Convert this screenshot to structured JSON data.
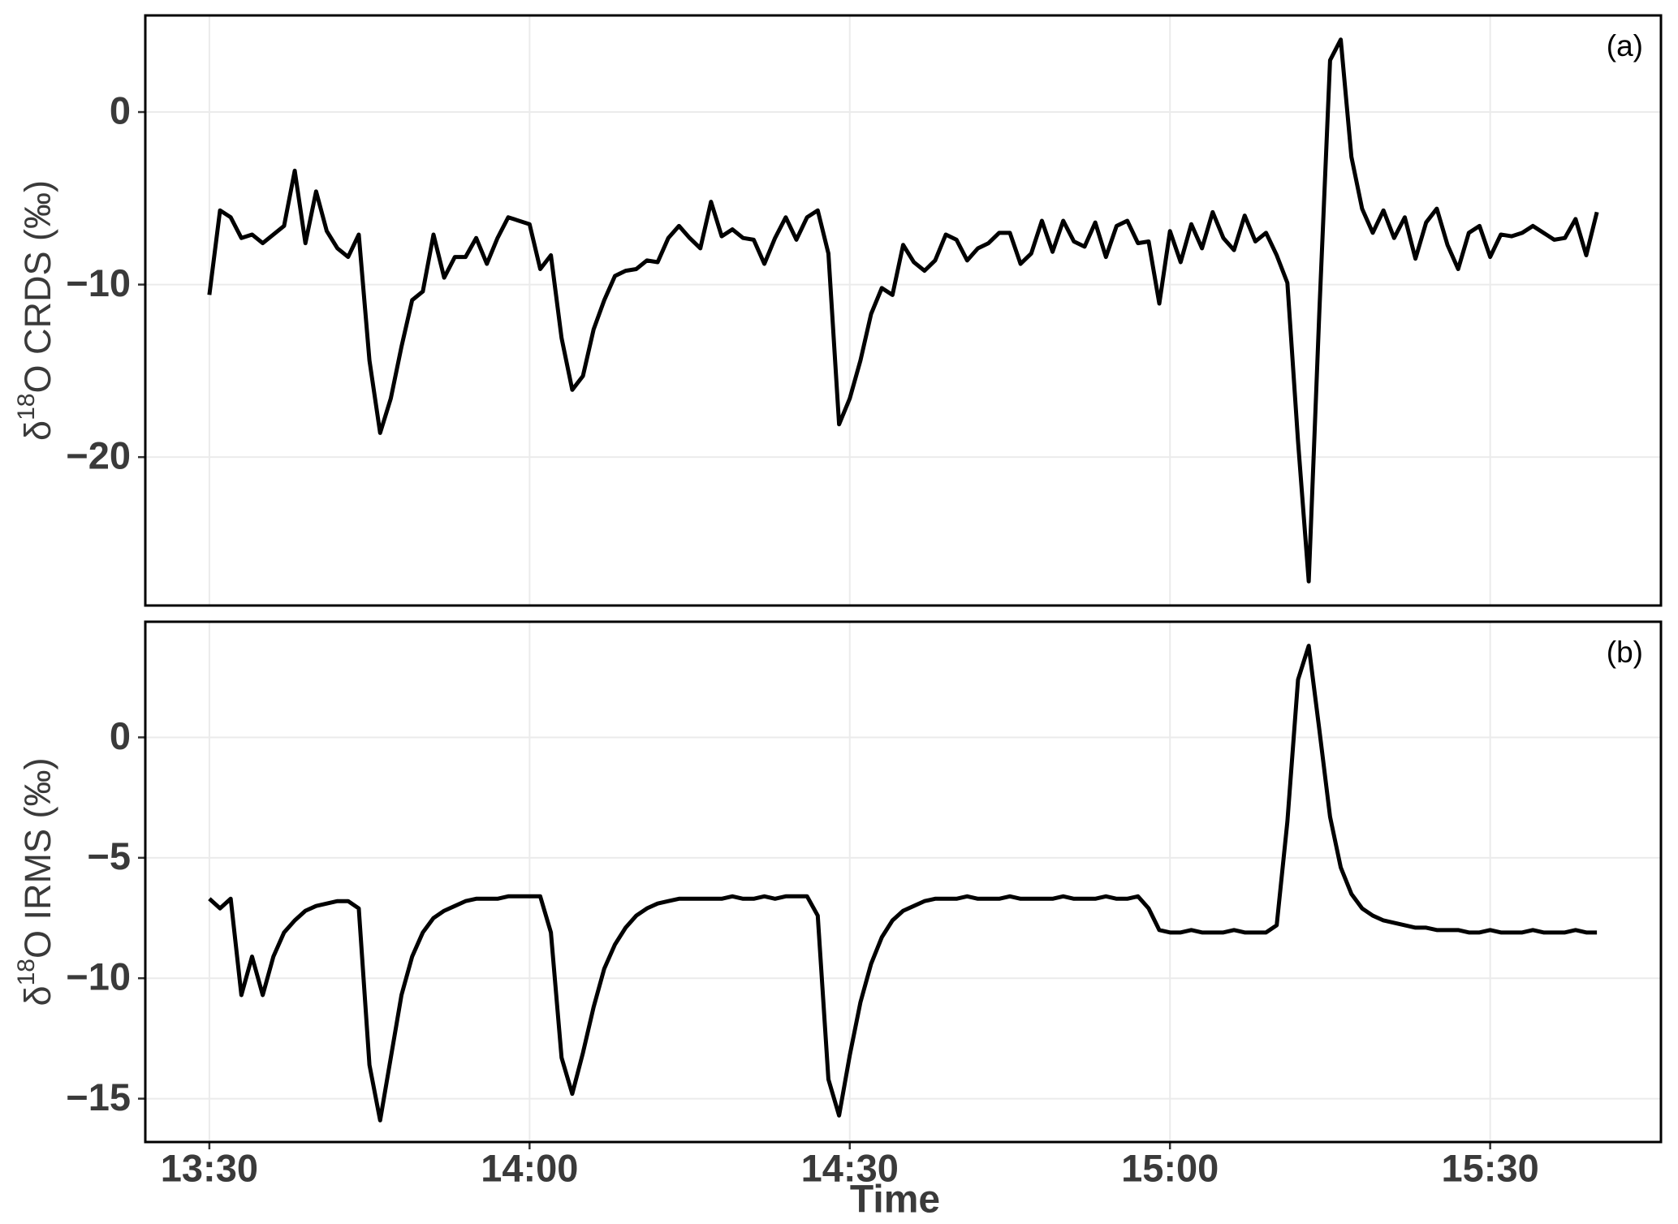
{
  "chart_data": [
    {
      "type": "line",
      "tag": "(a)",
      "ylabel_parts": [
        "δ",
        "18",
        "O CRDS (‰)"
      ],
      "color": "#000000",
      "grid": true,
      "xtick_labels": false,
      "x": [
        "13:30",
        "13:31",
        "13:32",
        "13:33",
        "13:34",
        "13:35",
        "13:36",
        "13:37",
        "13:38",
        "13:39",
        "13:40",
        "13:41",
        "13:42",
        "13:43",
        "13:44",
        "13:45",
        "13:46",
        "13:47",
        "13:48",
        "13:49",
        "13:50",
        "13:51",
        "13:52",
        "13:53",
        "13:54",
        "13:55",
        "13:56",
        "13:57",
        "13:58",
        "13:59",
        "14:00",
        "14:01",
        "14:02",
        "14:03",
        "14:04",
        "14:05",
        "14:06",
        "14:07",
        "14:08",
        "14:09",
        "14:10",
        "14:11",
        "14:12",
        "14:13",
        "14:14",
        "14:15",
        "14:16",
        "14:17",
        "14:18",
        "14:19",
        "14:20",
        "14:21",
        "14:22",
        "14:23",
        "14:24",
        "14:25",
        "14:26",
        "14:27",
        "14:28",
        "14:29",
        "14:30",
        "14:31",
        "14:32",
        "14:33",
        "14:34",
        "14:35",
        "14:36",
        "14:37",
        "14:38",
        "14:39",
        "14:40",
        "14:41",
        "14:42",
        "14:43",
        "14:44",
        "14:45",
        "14:46",
        "14:47",
        "14:48",
        "14:49",
        "14:50",
        "14:51",
        "14:52",
        "14:53",
        "14:54",
        "14:55",
        "14:56",
        "14:57",
        "14:58",
        "14:59",
        "15:00",
        "15:01",
        "15:02",
        "15:03",
        "15:04",
        "15:05",
        "15:06",
        "15:07",
        "15:08",
        "15:09",
        "15:10",
        "15:11",
        "15:12",
        "15:13",
        "15:14",
        "15:15",
        "15:16",
        "15:17",
        "15:18",
        "15:19",
        "15:20",
        "15:21",
        "15:22",
        "15:23",
        "15:24",
        "15:25",
        "15:26",
        "15:27",
        "15:28",
        "15:29",
        "15:30",
        "15:31",
        "15:32",
        "15:33",
        "15:34",
        "15:35",
        "15:36",
        "15:37",
        "15:38",
        "15:39",
        "15:40"
      ],
      "values": [
        -10.6,
        -5.7,
        -6.1,
        -7.3,
        -7.1,
        -7.6,
        -7.1,
        -6.6,
        -3.4,
        -7.6,
        -4.6,
        -6.9,
        -7.9,
        -8.4,
        -7.1,
        -14.4,
        -18.6,
        -16.6,
        -13.6,
        -10.9,
        -10.4,
        -7.1,
        -9.6,
        -8.4,
        -8.4,
        -7.3,
        -8.8,
        -7.3,
        -6.1,
        -6.3,
        -6.5,
        -9.1,
        -8.3,
        -13.1,
        -16.1,
        -15.3,
        -12.6,
        -10.9,
        -9.5,
        -9.2,
        -9.1,
        -8.6,
        -8.7,
        -7.3,
        -6.6,
        -7.3,
        -7.9,
        -5.2,
        -7.2,
        -6.8,
        -7.3,
        -7.4,
        -8.8,
        -7.3,
        -6.1,
        -7.4,
        -6.1,
        -5.7,
        -8.2,
        -18.1,
        -16.6,
        -14.4,
        -11.7,
        -10.2,
        -10.6,
        -7.7,
        -8.7,
        -9.2,
        -8.6,
        -7.1,
        -7.4,
        -8.6,
        -7.9,
        -7.6,
        -7.0,
        -7.0,
        -8.8,
        -8.2,
        -6.3,
        -8.1,
        -6.3,
        -7.5,
        -7.8,
        -6.4,
        -8.4,
        -6.6,
        -6.3,
        -7.6,
        -7.5,
        -11.1,
        -6.9,
        -8.7,
        -6.5,
        -7.9,
        -5.8,
        -7.3,
        -8.0,
        -6.0,
        -7.5,
        -7.0,
        -8.3,
        -9.9,
        -19.1,
        -27.2,
        -11.5,
        3.0,
        4.2,
        -2.6,
        -5.6,
        -7.0,
        -5.7,
        -7.3,
        -6.1,
        -8.5,
        -6.4,
        -5.6,
        -7.7,
        -9.1,
        -7.0,
        -6.6,
        -8.4,
        -7.1,
        -7.2,
        -7.0,
        -6.6,
        -7.0,
        -7.4,
        -7.3,
        -6.2,
        -8.3,
        -5.8
      ],
      "xlim": [
        "13:24",
        "15:46"
      ],
      "xticks": [
        "13:30",
        "14:00",
        "14:30",
        "15:00",
        "15:30"
      ],
      "ylim": [
        -28.6,
        5.6
      ],
      "yticks": [
        0,
        {
          "value": -10,
          "label": "−10"
        },
        {
          "value": -20,
          "label": "−20"
        }
      ]
    },
    {
      "type": "line",
      "tag": "(b)",
      "ylabel_parts": [
        "δ",
        "18",
        "O IRMS (‰)"
      ],
      "xlabel": "Time",
      "color": "#000000",
      "grid": true,
      "xtick_labels": true,
      "x": [
        "13:30",
        "13:31",
        "13:32",
        "13:33",
        "13:34",
        "13:35",
        "13:36",
        "13:37",
        "13:38",
        "13:39",
        "13:40",
        "13:41",
        "13:42",
        "13:43",
        "13:44",
        "13:45",
        "13:46",
        "13:47",
        "13:48",
        "13:49",
        "13:50",
        "13:51",
        "13:52",
        "13:53",
        "13:54",
        "13:55",
        "13:56",
        "13:57",
        "13:58",
        "13:59",
        "14:00",
        "14:01",
        "14:02",
        "14:03",
        "14:04",
        "14:05",
        "14:06",
        "14:07",
        "14:08",
        "14:09",
        "14:10",
        "14:11",
        "14:12",
        "14:13",
        "14:14",
        "14:15",
        "14:16",
        "14:17",
        "14:18",
        "14:19",
        "14:20",
        "14:21",
        "14:22",
        "14:23",
        "14:24",
        "14:25",
        "14:26",
        "14:27",
        "14:28",
        "14:29",
        "14:30",
        "14:31",
        "14:32",
        "14:33",
        "14:34",
        "14:35",
        "14:36",
        "14:37",
        "14:38",
        "14:39",
        "14:40",
        "14:41",
        "14:42",
        "14:43",
        "14:44",
        "14:45",
        "14:46",
        "14:47",
        "14:48",
        "14:49",
        "14:50",
        "14:51",
        "14:52",
        "14:53",
        "14:54",
        "14:55",
        "14:56",
        "14:57",
        "14:58",
        "14:59",
        "15:00",
        "15:01",
        "15:02",
        "15:03",
        "15:04",
        "15:05",
        "15:06",
        "15:07",
        "15:08",
        "15:09",
        "15:10",
        "15:11",
        "15:12",
        "15:13",
        "15:14",
        "15:15",
        "15:16",
        "15:17",
        "15:18",
        "15:19",
        "15:20",
        "15:21",
        "15:22",
        "15:23",
        "15:24",
        "15:25",
        "15:26",
        "15:27",
        "15:28",
        "15:29",
        "15:30",
        "15:31",
        "15:32",
        "15:33",
        "15:34",
        "15:35",
        "15:36",
        "15:37",
        "15:38",
        "15:39",
        "15:40"
      ],
      "values": [
        -6.7,
        -7.1,
        -6.7,
        -10.7,
        -9.1,
        -10.7,
        -9.1,
        -8.1,
        -7.6,
        -7.2,
        -7.0,
        -6.9,
        -6.8,
        -6.8,
        -7.1,
        -13.6,
        -15.9,
        -13.3,
        -10.7,
        -9.1,
        -8.1,
        -7.5,
        -7.2,
        -7.0,
        -6.8,
        -6.7,
        -6.7,
        -6.7,
        -6.6,
        -6.6,
        -6.6,
        -6.6,
        -8.1,
        -13.3,
        -14.8,
        -13.1,
        -11.2,
        -9.6,
        -8.6,
        -7.9,
        -7.4,
        -7.1,
        -6.9,
        -6.8,
        -6.7,
        -6.7,
        -6.7,
        -6.7,
        -6.7,
        -6.6,
        -6.7,
        -6.7,
        -6.6,
        -6.7,
        -6.6,
        -6.6,
        -6.6,
        -7.4,
        -14.2,
        -15.7,
        -13.2,
        -11.0,
        -9.4,
        -8.3,
        -7.6,
        -7.2,
        -7.0,
        -6.8,
        -6.7,
        -6.7,
        -6.7,
        -6.6,
        -6.7,
        -6.7,
        -6.7,
        -6.6,
        -6.7,
        -6.7,
        -6.7,
        -6.7,
        -6.6,
        -6.7,
        -6.7,
        -6.7,
        -6.6,
        -6.7,
        -6.7,
        -6.6,
        -7.1,
        -8.0,
        -8.1,
        -8.1,
        -8.0,
        -8.1,
        -8.1,
        -8.1,
        -8.0,
        -8.1,
        -8.1,
        -8.1,
        -7.8,
        -3.5,
        2.4,
        3.8,
        0.3,
        -3.3,
        -5.4,
        -6.5,
        -7.1,
        -7.4,
        -7.6,
        -7.7,
        -7.8,
        -7.9,
        -7.9,
        -8.0,
        -8.0,
        -8.0,
        -8.1,
        -8.1,
        -8.0,
        -8.1,
        -8.1,
        -8.1,
        -8.0,
        -8.1,
        -8.1,
        -8.1,
        -8.0,
        -8.1,
        -8.1
      ],
      "xlim": [
        "13:24",
        "15:46"
      ],
      "xticks": [
        "13:30",
        "14:00",
        "14:30",
        "15:00",
        "15:30"
      ],
      "ylim": [
        -16.8,
        4.8
      ],
      "yticks": [
        0,
        {
          "value": -5,
          "label": "−5"
        },
        {
          "value": -10,
          "label": "−10"
        },
        {
          "value": -15,
          "label": "−15"
        }
      ]
    }
  ]
}
